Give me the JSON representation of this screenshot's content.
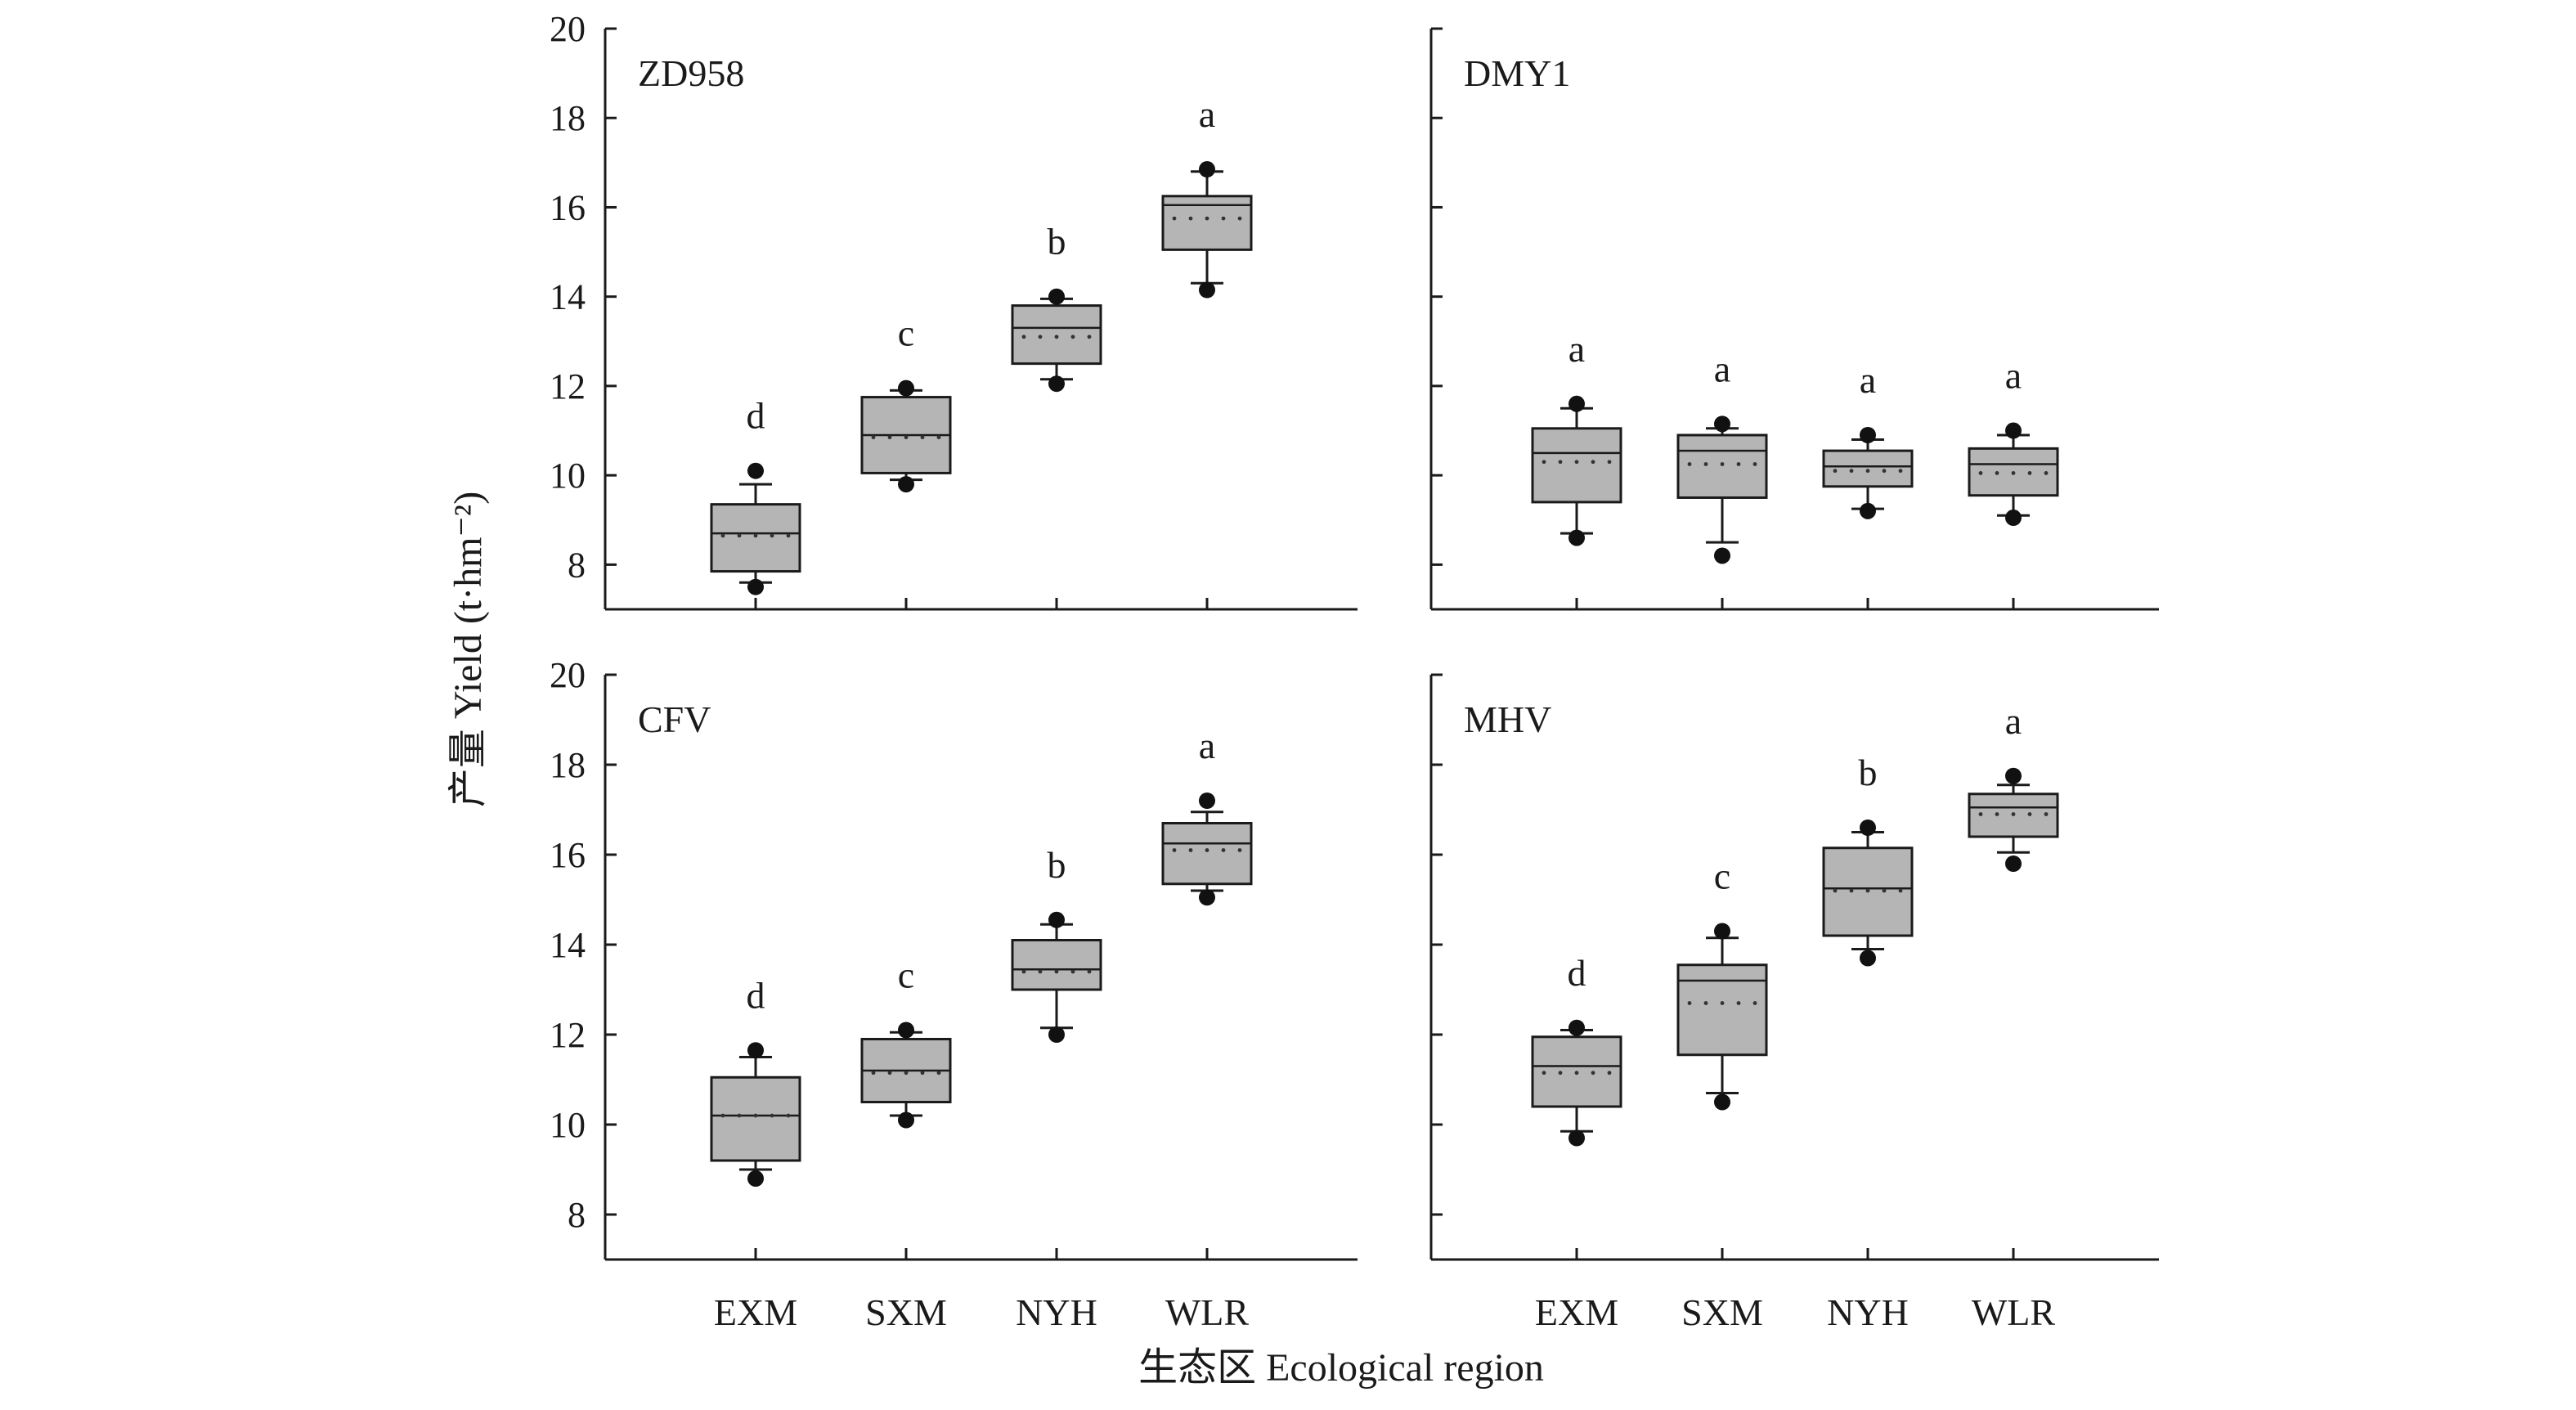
{
  "chart_data": {
    "type": "box",
    "ylabel": "产量 Yield (t·hm⁻²)",
    "xlabel": "生态区 Ecological region",
    "ylim": [
      7,
      20
    ],
    "yticks": [
      8,
      10,
      12,
      14,
      16,
      18,
      20
    ],
    "categories": [
      "EXM",
      "SXM",
      "NYH",
      "WLR"
    ],
    "panels": [
      {
        "title": "ZD958",
        "groups": [
          {
            "category": "EXM",
            "whisker_low": 7.6,
            "q1": 7.85,
            "median": 8.7,
            "mean": 8.65,
            "q3": 9.35,
            "whisker_high": 9.8,
            "outliers": [
              7.5,
              10.1
            ],
            "letter": "d"
          },
          {
            "category": "SXM",
            "whisker_low": 9.9,
            "q1": 10.05,
            "median": 10.9,
            "mean": 10.85,
            "q3": 11.75,
            "whisker_high": 11.9,
            "outliers": [
              9.8,
              11.95
            ],
            "letter": "c"
          },
          {
            "category": "NYH",
            "whisker_low": 12.15,
            "q1": 12.5,
            "median": 13.3,
            "mean": 13.1,
            "q3": 13.8,
            "whisker_high": 13.95,
            "outliers": [
              12.05,
              14.0
            ],
            "letter": "b"
          },
          {
            "category": "WLR",
            "whisker_low": 14.3,
            "q1": 15.05,
            "median": 16.05,
            "mean": 15.75,
            "q3": 16.25,
            "whisker_high": 16.8,
            "outliers": [
              14.15,
              16.85
            ],
            "letter": "a"
          }
        ]
      },
      {
        "title": "DMY1",
        "groups": [
          {
            "category": "EXM",
            "whisker_low": 8.7,
            "q1": 9.4,
            "median": 10.5,
            "mean": 10.3,
            "q3": 11.05,
            "whisker_high": 11.5,
            "outliers": [
              8.6,
              11.6
            ],
            "letter": "a"
          },
          {
            "category": "SXM",
            "whisker_low": 8.5,
            "q1": 9.5,
            "median": 10.55,
            "mean": 10.25,
            "q3": 10.9,
            "whisker_high": 11.05,
            "outliers": [
              8.2,
              11.15
            ],
            "letter": "a"
          },
          {
            "category": "NYH",
            "whisker_low": 9.25,
            "q1": 9.75,
            "median": 10.2,
            "mean": 10.1,
            "q3": 10.55,
            "whisker_high": 10.8,
            "outliers": [
              9.2,
              10.9
            ],
            "letter": "a"
          },
          {
            "category": "WLR",
            "whisker_low": 9.1,
            "q1": 9.55,
            "median": 10.25,
            "mean": 10.05,
            "q3": 10.6,
            "whisker_high": 10.9,
            "outliers": [
              9.05,
              11.0
            ],
            "letter": "a"
          }
        ]
      },
      {
        "title": "CFV",
        "groups": [
          {
            "category": "EXM",
            "whisker_low": 9.0,
            "q1": 9.2,
            "median": 10.2,
            "mean": 10.2,
            "q3": 11.05,
            "whisker_high": 11.5,
            "outliers": [
              8.8,
              11.65
            ],
            "letter": "d"
          },
          {
            "category": "SXM",
            "whisker_low": 10.2,
            "q1": 10.5,
            "median": 11.2,
            "mean": 11.15,
            "q3": 11.9,
            "whisker_high": 12.05,
            "outliers": [
              10.1,
              12.1
            ],
            "letter": "c"
          },
          {
            "category": "NYH",
            "whisker_low": 12.15,
            "q1": 13.0,
            "median": 13.45,
            "mean": 13.4,
            "q3": 14.1,
            "whisker_high": 14.45,
            "outliers": [
              12.0,
              14.55
            ],
            "letter": "b"
          },
          {
            "category": "WLR",
            "whisker_low": 15.2,
            "q1": 15.35,
            "median": 16.25,
            "mean": 16.1,
            "q3": 16.7,
            "whisker_high": 16.95,
            "outliers": [
              15.05,
              17.2
            ],
            "letter": "a"
          }
        ]
      },
      {
        "title": "MHV",
        "groups": [
          {
            "category": "EXM",
            "whisker_low": 9.85,
            "q1": 10.4,
            "median": 11.3,
            "mean": 11.15,
            "q3": 11.95,
            "whisker_high": 12.1,
            "outliers": [
              9.7,
              12.15
            ],
            "letter": "d"
          },
          {
            "category": "SXM",
            "whisker_low": 10.7,
            "q1": 11.55,
            "median": 13.2,
            "mean": 12.7,
            "q3": 13.55,
            "whisker_high": 14.15,
            "outliers": [
              10.5,
              14.3
            ],
            "letter": "c"
          },
          {
            "category": "NYH",
            "whisker_low": 13.9,
            "q1": 14.2,
            "median": 15.25,
            "mean": 15.2,
            "q3": 16.15,
            "whisker_high": 16.5,
            "outliers": [
              13.7,
              16.6
            ],
            "letter": "b"
          },
          {
            "category": "WLR",
            "whisker_low": 16.05,
            "q1": 16.4,
            "median": 17.05,
            "mean": 16.9,
            "q3": 17.35,
            "whisker_high": 17.55,
            "outliers": [
              15.8,
              17.75
            ],
            "letter": "a"
          }
        ]
      }
    ]
  }
}
